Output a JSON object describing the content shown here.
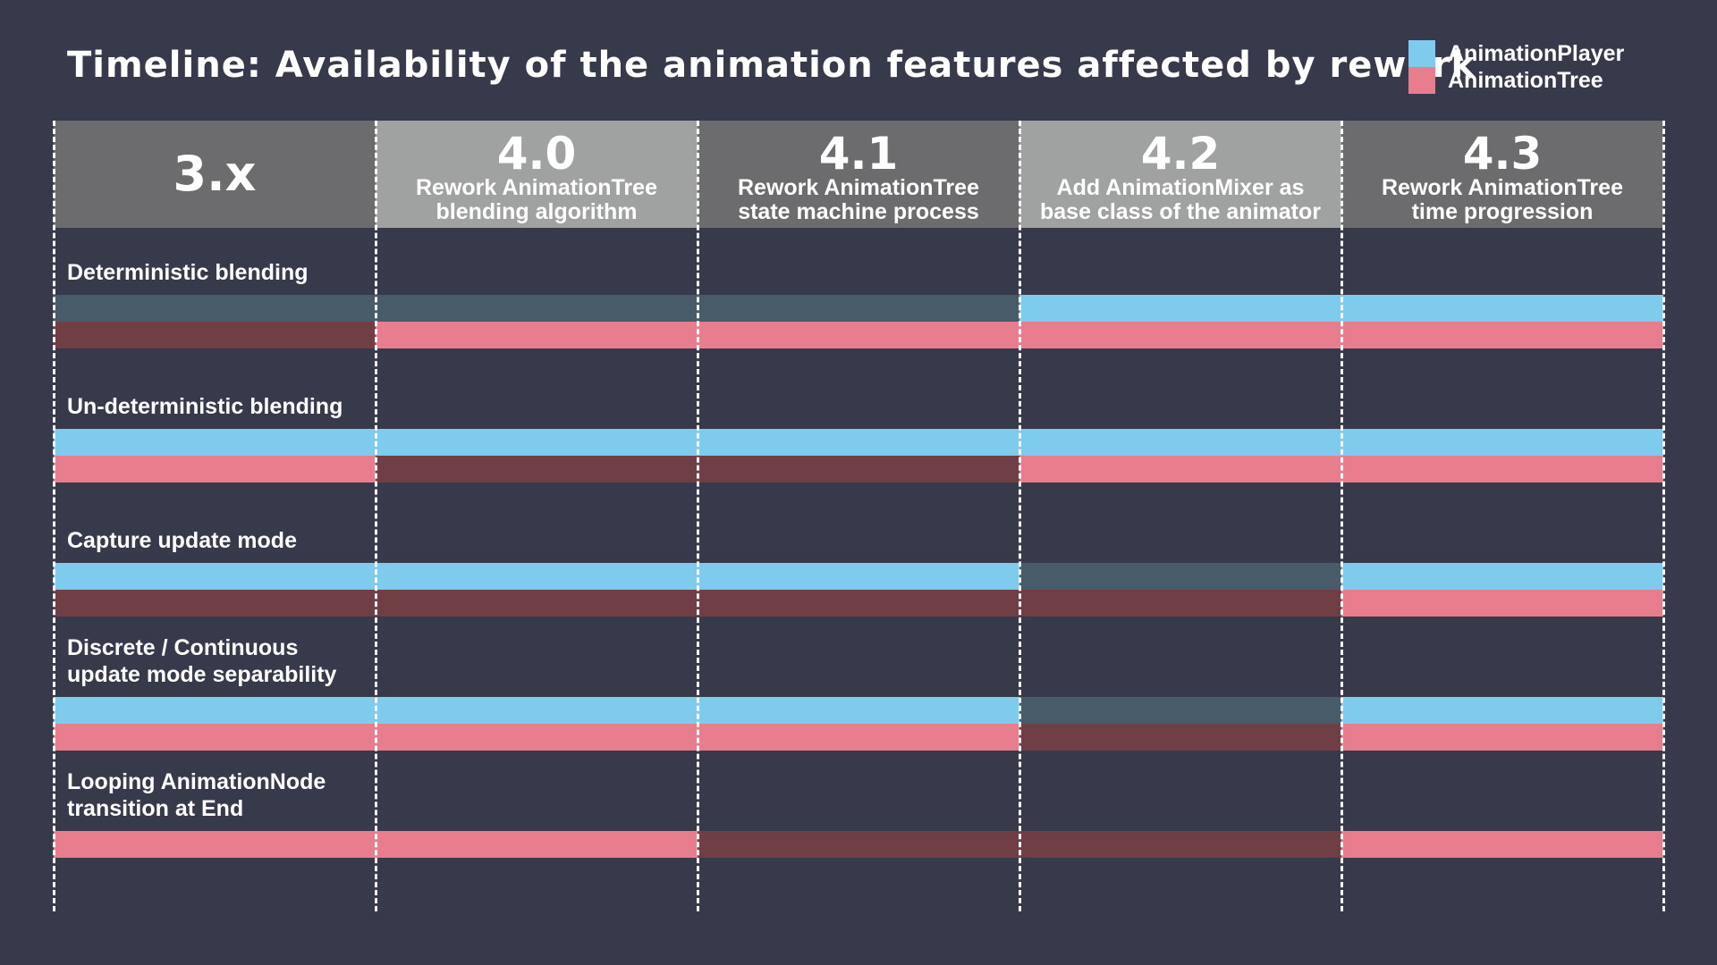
{
  "title": "Timeline: Availability of the animation features affected by rework",
  "legend": [
    {
      "label": "AnimationPlayer",
      "color": "#7ecbed"
    },
    {
      "label": "AnimationTree",
      "color": "#e77d8d"
    }
  ],
  "colors": {
    "player_on": "#7ecbed",
    "player_off": "#485b68",
    "tree_on": "#e77d8d",
    "tree_off": "#703f46"
  },
  "columns": [
    {
      "version": "3.x",
      "desc_lines": []
    },
    {
      "version": "4.0",
      "desc_lines": [
        "Rework AnimationTree",
        "blending algorithm"
      ]
    },
    {
      "version": "4.1",
      "desc_lines": [
        "Rework AnimationTree",
        "state machine process"
      ]
    },
    {
      "version": "4.2",
      "desc_lines": [
        "Add AnimationMixer as",
        "base class of the animator"
      ]
    },
    {
      "version": "4.3",
      "desc_lines": [
        "Rework AnimationTree",
        "time progression"
      ]
    }
  ],
  "features": [
    {
      "label_lines": [
        "Deterministic blending"
      ],
      "player": [
        false,
        false,
        false,
        true,
        true
      ],
      "tree": [
        false,
        true,
        true,
        true,
        true
      ]
    },
    {
      "label_lines": [
        "Un-deterministic blending"
      ],
      "player": [
        true,
        true,
        true,
        true,
        true
      ],
      "tree": [
        true,
        false,
        false,
        true,
        true
      ]
    },
    {
      "label_lines": [
        "Capture update mode"
      ],
      "player": [
        true,
        true,
        true,
        false,
        true
      ],
      "tree": [
        false,
        false,
        false,
        false,
        true
      ]
    },
    {
      "label_lines": [
        "Discrete / Continuous",
        "update mode separability"
      ],
      "player": [
        true,
        true,
        true,
        false,
        true
      ],
      "tree": [
        true,
        true,
        true,
        false,
        true
      ]
    },
    {
      "label_lines": [
        "Looping AnimationNode",
        "transition at End"
      ],
      "player": null,
      "tree": [
        true,
        true,
        false,
        false,
        true
      ]
    }
  ]
}
